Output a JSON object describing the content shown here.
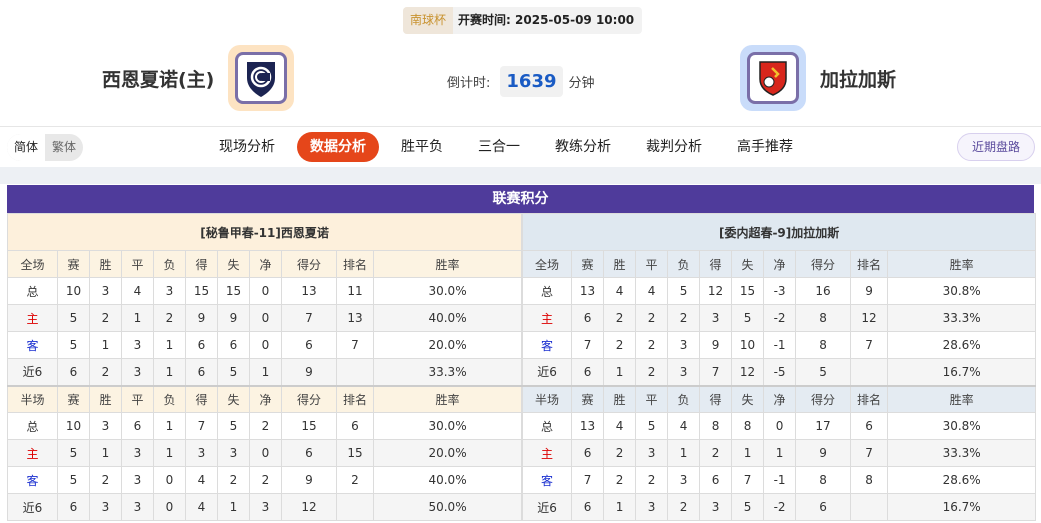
{
  "header": {
    "league": "南球杯",
    "kickoff_label": "开赛时间:",
    "kickoff_time": "2025-05-09 10:00",
    "home_team": "西恩夏诺(主)",
    "away_team": "加拉加斯",
    "countdown_label": "倒计时:",
    "countdown_value": "1639",
    "countdown_unit": "分钟"
  },
  "nav": {
    "lang": [
      "简体",
      "繁体"
    ],
    "tabs": [
      "现场分析",
      "数据分析",
      "胜平负",
      "三合一",
      "教练分析",
      "裁判分析",
      "高手推荐"
    ],
    "active_tab": "数据分析",
    "recent": "近期盘路"
  },
  "section_title": "联赛积分",
  "colors": {
    "purple": "#4f3b9b",
    "active_tab": "#e5461a",
    "home_red": "#dd0000",
    "away_blue": "#1a2fd0"
  },
  "tables": [
    {
      "caption": "[秘鲁甲春-11]西恩夏诺",
      "full_header": [
        "全场",
        "赛",
        "胜",
        "平",
        "负",
        "得",
        "失",
        "净",
        "得分",
        "排名",
        "胜率"
      ],
      "full_rows": [
        [
          "总",
          "10",
          "3",
          "4",
          "3",
          "15",
          "15",
          "0",
          "13",
          "11",
          "30.0%"
        ],
        [
          "主",
          "5",
          "2",
          "1",
          "2",
          "9",
          "9",
          "0",
          "7",
          "13",
          "40.0%"
        ],
        [
          "客",
          "5",
          "1",
          "3",
          "1",
          "6",
          "6",
          "0",
          "6",
          "7",
          "20.0%"
        ],
        [
          "近6",
          "6",
          "2",
          "3",
          "1",
          "6",
          "5",
          "1",
          "9",
          "",
          "33.3%"
        ]
      ],
      "half_header": [
        "半场",
        "赛",
        "胜",
        "平",
        "负",
        "得",
        "失",
        "净",
        "得分",
        "排名",
        "胜率"
      ],
      "half_rows": [
        [
          "总",
          "10",
          "3",
          "6",
          "1",
          "7",
          "5",
          "2",
          "15",
          "6",
          "30.0%"
        ],
        [
          "主",
          "5",
          "1",
          "3",
          "1",
          "3",
          "3",
          "0",
          "6",
          "15",
          "20.0%"
        ],
        [
          "客",
          "5",
          "2",
          "3",
          "0",
          "4",
          "2",
          "2",
          "9",
          "2",
          "40.0%"
        ],
        [
          "近6",
          "6",
          "3",
          "3",
          "0",
          "4",
          "1",
          "3",
          "12",
          "",
          "50.0%"
        ]
      ]
    },
    {
      "caption": "[委内超春-9]加拉加斯",
      "full_header": [
        "全场",
        "赛",
        "胜",
        "平",
        "负",
        "得",
        "失",
        "净",
        "得分",
        "排名",
        "胜率"
      ],
      "full_rows": [
        [
          "总",
          "13",
          "4",
          "4",
          "5",
          "12",
          "15",
          "-3",
          "16",
          "9",
          "30.8%"
        ],
        [
          "主",
          "6",
          "2",
          "2",
          "2",
          "3",
          "5",
          "-2",
          "8",
          "12",
          "33.3%"
        ],
        [
          "客",
          "7",
          "2",
          "2",
          "3",
          "9",
          "10",
          "-1",
          "8",
          "7",
          "28.6%"
        ],
        [
          "近6",
          "6",
          "1",
          "2",
          "3",
          "7",
          "12",
          "-5",
          "5",
          "",
          "16.7%"
        ]
      ],
      "half_header": [
        "半场",
        "赛",
        "胜",
        "平",
        "负",
        "得",
        "失",
        "净",
        "得分",
        "排名",
        "胜率"
      ],
      "half_rows": [
        [
          "总",
          "13",
          "4",
          "5",
          "4",
          "8",
          "8",
          "0",
          "17",
          "6",
          "30.8%"
        ],
        [
          "主",
          "6",
          "2",
          "3",
          "1",
          "2",
          "1",
          "1",
          "9",
          "7",
          "33.3%"
        ],
        [
          "客",
          "7",
          "2",
          "2",
          "3",
          "6",
          "7",
          "-1",
          "8",
          "8",
          "28.6%"
        ],
        [
          "近6",
          "6",
          "1",
          "3",
          "2",
          "3",
          "5",
          "-2",
          "6",
          "",
          "16.7%"
        ]
      ]
    }
  ]
}
